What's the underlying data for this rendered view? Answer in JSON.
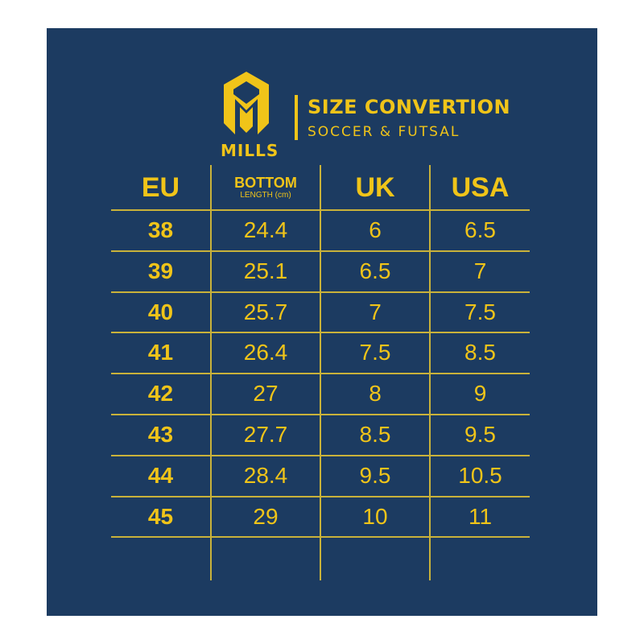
{
  "brand": {
    "name": "MILLS",
    "logo_icon": "mills-helmet-logo"
  },
  "header": {
    "title": "SIZE CONVERTION",
    "subtitle": "SOCCER & FUTSAL"
  },
  "colors": {
    "background": "#1c3b61",
    "accent": "#f0c419"
  },
  "table": {
    "columns": [
      {
        "label": "EU"
      },
      {
        "label": "BOTTOM",
        "sublabel": "LENGTH (cm)"
      },
      {
        "label": "UK"
      },
      {
        "label": "USA"
      }
    ],
    "rows": [
      [
        "38",
        "24.4",
        "6",
        "6.5"
      ],
      [
        "39",
        "25.1",
        "6.5",
        "7"
      ],
      [
        "40",
        "25.7",
        "7",
        "7.5"
      ],
      [
        "41",
        "26.4",
        "7.5",
        "8.5"
      ],
      [
        "42",
        "27",
        "8",
        "9"
      ],
      [
        "43",
        "27.7",
        "8.5",
        "9.5"
      ],
      [
        "44",
        "28.4",
        "9.5",
        "10.5"
      ],
      [
        "45",
        "29",
        "10",
        "11"
      ]
    ]
  }
}
